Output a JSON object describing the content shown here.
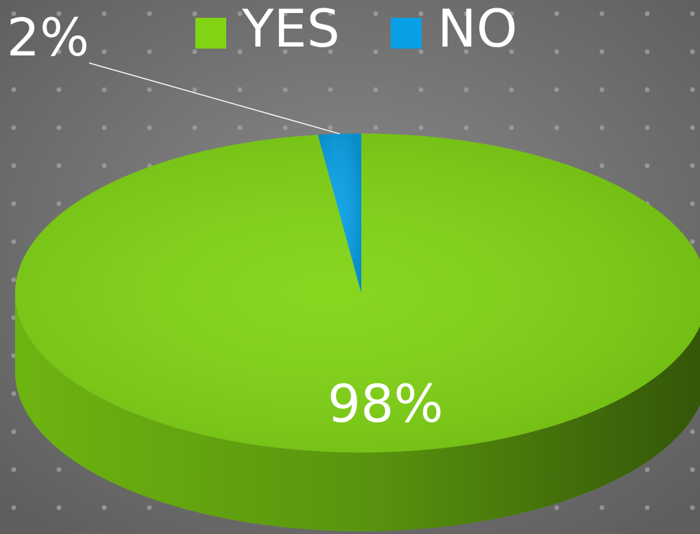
{
  "chart_data": {
    "type": "pie",
    "categories": [
      "YES",
      "NO"
    ],
    "values": [
      98,
      2
    ],
    "value_labels": [
      "98%",
      "2%"
    ],
    "colors": [
      "#80d414",
      "#0aa0e6"
    ],
    "legend": "top"
  }
}
